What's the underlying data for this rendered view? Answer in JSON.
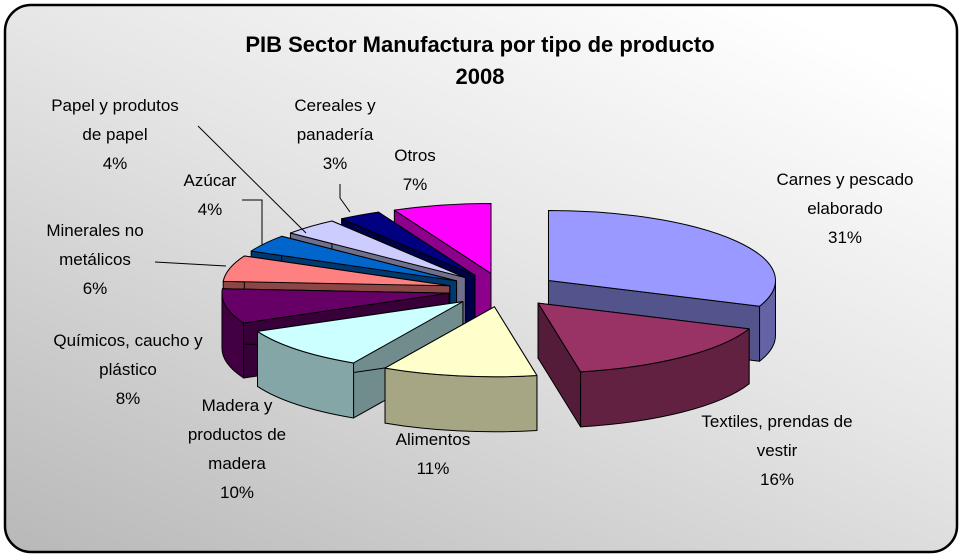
{
  "chart_data": {
    "type": "pie3d",
    "title": "PIB Sector Manufactura por tipo de producto",
    "subtitle": "2008",
    "categories": [
      "Carnes y pescado elaborado",
      "Textiles, prendas de vestir",
      "Alimentos",
      "Madera y productos de madera",
      "Químicos, caucho y plástico",
      "Minerales no metálicos",
      "Azúcar",
      "Papel y produtos de papel",
      "Cereales y panadería",
      "Otros"
    ],
    "values": [
      31,
      16,
      11,
      10,
      8,
      6,
      4,
      4,
      3,
      7
    ],
    "value_labels": [
      "31%",
      "16%",
      "11%",
      "10%",
      "8%",
      "6%",
      "4%",
      "4%",
      "3%",
      "7%"
    ],
    "colors": [
      "#9999ff",
      "#993366",
      "#ffffcc",
      "#ccffff",
      "#660066",
      "#ff8080",
      "#0066cc",
      "#ccccff",
      "#000080",
      "#ff00ff"
    ]
  }
}
